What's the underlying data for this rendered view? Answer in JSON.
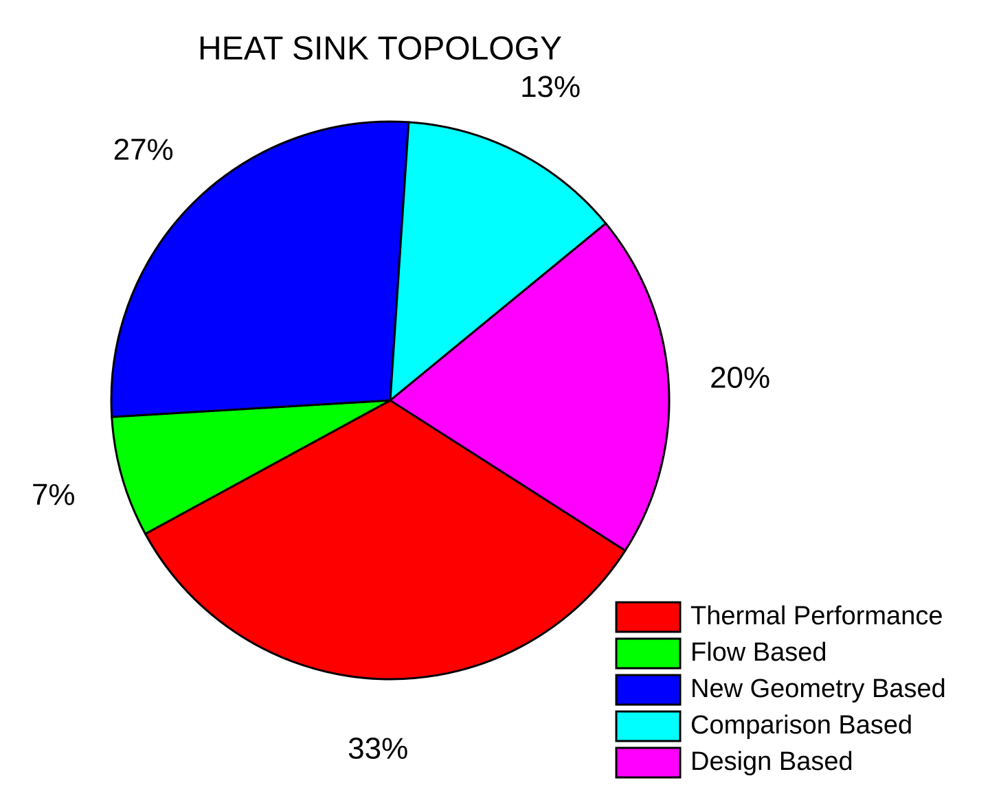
{
  "chart_data": {
    "type": "pie",
    "title": "HEAT SINK TOPOLOGY",
    "categories": [
      "Thermal Performance",
      "Flow Based",
      "New Geometry Based",
      "Comparison Based",
      "Design Based"
    ],
    "values": [
      33,
      7,
      27,
      13,
      20
    ],
    "value_labels": [
      "33%",
      "7%",
      "27%",
      "13%",
      "20%"
    ],
    "colors": [
      "#ff0000",
      "#00ff00",
      "#0000ff",
      "#00ffff",
      "#ff00ff"
    ],
    "legend": "bottom-right"
  }
}
